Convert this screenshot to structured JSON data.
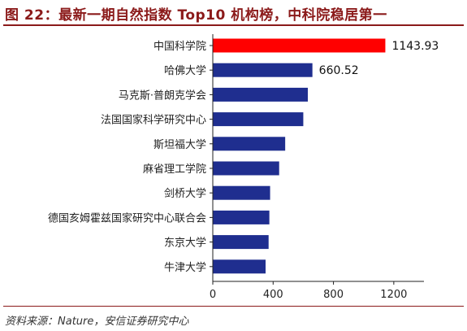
{
  "header": {
    "title": "图 22：最新一期自然指数 Top10 机构榜，中科院稳居第一"
  },
  "footer": {
    "source": "资料来源：Nature，安信证券研究中心"
  },
  "colors": {
    "title": "#8b1a1a",
    "highlight_bar": "#ff0000",
    "bar": "#1f2e8f",
    "axis": "#222222"
  },
  "chart_data": {
    "type": "bar",
    "orientation": "horizontal",
    "title": "",
    "xlabel": "",
    "ylabel": "",
    "categories": [
      "中国科学院",
      "哈佛大学",
      "马克斯·普朗克学会",
      "法国国家科学研究中心",
      "斯坦福大学",
      "麻省理工学院",
      "剑桥大学",
      "德国亥姆霍兹国家研究中心联合会",
      "东京大学",
      "牛津大学"
    ],
    "values": [
      1143.93,
      660.52,
      630,
      600,
      480,
      440,
      380,
      375,
      370,
      350
    ],
    "data_labels": [
      "1143.93",
      "660.52",
      null,
      null,
      null,
      null,
      null,
      null,
      null,
      null
    ],
    "xlim": [
      0,
      1400
    ],
    "xticks": [
      0,
      400,
      800,
      1200
    ],
    "grid": false,
    "legend": "none"
  }
}
